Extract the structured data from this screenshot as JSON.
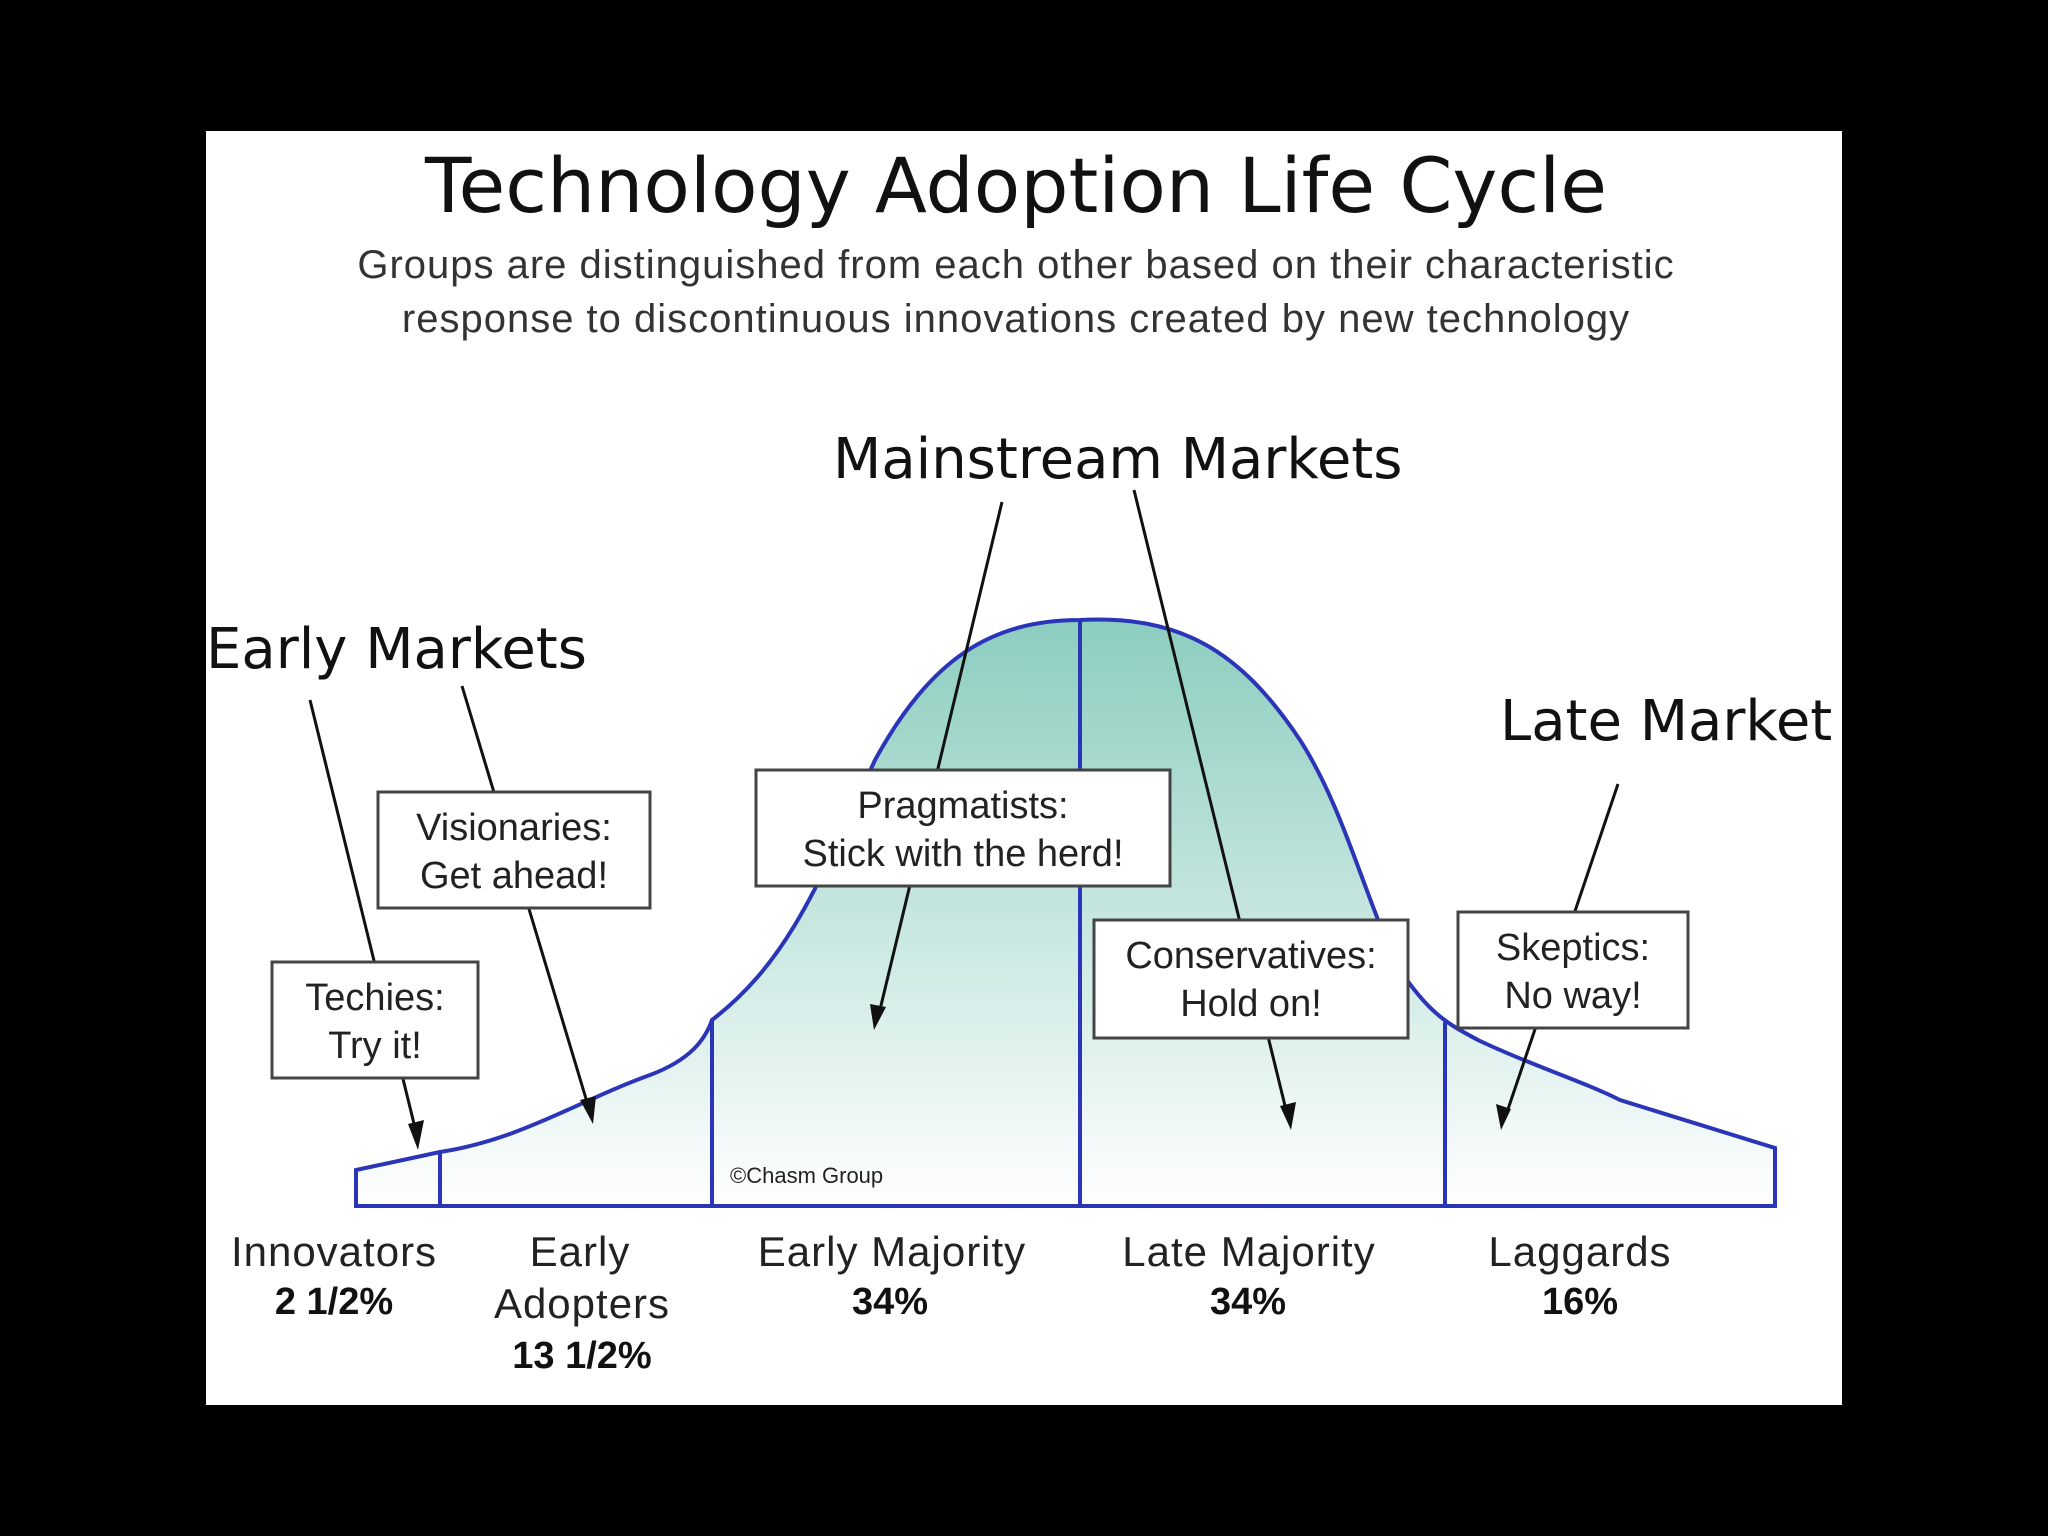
{
  "title": "Technology Adoption Life Cycle",
  "subtitle_lines": [
    "Groups are distinguished from each other based on their characteristic",
    "response to discontinuous innovations created by new technology"
  ],
  "markets": {
    "early": "Early Markets",
    "mainstream": "Mainstream Markets",
    "late": "Late Market"
  },
  "callouts": {
    "techies": [
      "Techies:",
      "Try it!"
    ],
    "visionaries": [
      "Visionaries:",
      "Get ahead!"
    ],
    "pragmatists": [
      "Pragmatists:",
      "Stick with the herd!"
    ],
    "conservatives": [
      "Conservatives:",
      "Hold on!"
    ],
    "skeptics": [
      "Skeptics:",
      "No way!"
    ]
  },
  "copyright": "©Chasm Group",
  "colors": {
    "background": "#000000",
    "panel": "#ffffff",
    "curve_stroke": "#2b35b8",
    "fill_top": "#8ccdbf",
    "fill_bottom": "#ffffff"
  },
  "groups": [
    {
      "name_lines": [
        "Innovators"
      ],
      "percent": "2 1/2%",
      "share": 2.5
    },
    {
      "name_lines": [
        "Early",
        "Adopters"
      ],
      "percent": "13 1/2%",
      "share": 13.5
    },
    {
      "name_lines": [
        "Early Majority"
      ],
      "percent": "34%",
      "share": 34
    },
    {
      "name_lines": [
        "Late Majority"
      ],
      "percent": "34%",
      "share": 34
    },
    {
      "name_lines": [
        "Laggards"
      ],
      "percent": "16%",
      "share": 16
    }
  ]
}
